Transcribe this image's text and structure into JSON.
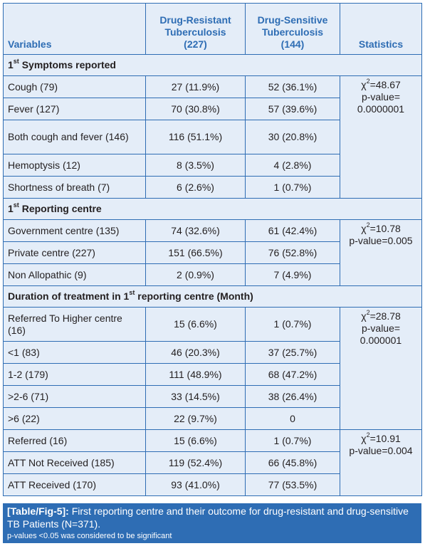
{
  "table": {
    "headers": {
      "variables": "Variables",
      "drug_resistant": [
        "Drug-Resistant",
        "Tuberculosis",
        "(227)"
      ],
      "drug_sensitive": [
        "Drug-Sensitive",
        "Tuberculosis",
        "(144)"
      ],
      "statistics": "Statistics"
    },
    "sections": [
      {
        "title_prefix": "1",
        "title_sup": "st",
        "title_rest": " Symptoms reported",
        "rows": [
          {
            "variable": "Cough (79)",
            "dr": "27 (11.9%)",
            "ds": "52 (36.1%)"
          },
          {
            "variable": "Fever (127)",
            "dr": "70 (30.8%)",
            "ds": "57 (39.6%)"
          },
          {
            "variable": "Both cough and fever (146)",
            "dr": "116 (51.1%)",
            "ds": "30 (20.8%)"
          },
          {
            "variable": "Hemoptysis (12)",
            "dr": "8 (3.5%)",
            "ds": "4 (2.8%)"
          },
          {
            "variable": "Shortness of breath (7)",
            "dr": "6 (2.6%)",
            "ds": "1 (0.7%)"
          }
        ],
        "stat": {
          "chi_prefix": "χ",
          "chi_sup": "2",
          "chi_value": "=48.67",
          "lines": [
            "p-value=",
            "0.0000001"
          ]
        }
      },
      {
        "title_prefix": "1",
        "title_sup": "st",
        "title_rest": " Reporting centre",
        "rows": [
          {
            "variable": "Government centre (135)",
            "dr": "74 (32.6%)",
            "ds": "61 (42.4%)"
          },
          {
            "variable": "Private centre (227)",
            "dr": "151 (66.5%)",
            "ds": "76 (52.8%)"
          },
          {
            "variable": "Non Allopathic (9)",
            "dr": "2 (0.9%)",
            "ds": "7 (4.9%)"
          }
        ],
        "stat": {
          "chi_prefix": "χ",
          "chi_sup": "2",
          "chi_value": "=10.78",
          "lines": [
            "p-value=0.005"
          ]
        }
      },
      {
        "title_prefix": "Duration of treatment in 1",
        "title_sup": "st",
        "title_rest": " reporting centre (Month)",
        "rows": [
          {
            "variable": "Referred To Higher centre (16)",
            "dr": "15 (6.6%)",
            "ds": "1 (0.7%)"
          },
          {
            "variable": "<1 (83)",
            "dr": "46 (20.3%)",
            "ds": "37 (25.7%)"
          },
          {
            "variable": "1-2 (179)",
            "dr": "111 (48.9%)",
            "ds": "68 (47.2%)"
          },
          {
            "variable": ">2-6 (71)",
            "dr": "33 (14.5%)",
            "ds": "38 (26.4%)"
          },
          {
            "variable": ">6 (22)",
            "dr": "22 (9.7%)",
            "ds": "0"
          }
        ],
        "stat": {
          "chi_prefix": "χ",
          "chi_sup": "2",
          "chi_value": "=28.78",
          "lines": [
            "p-value=",
            "0.000001"
          ]
        }
      },
      {
        "rows": [
          {
            "variable": "Referred (16)",
            "dr": "15 (6.6%)",
            "ds": "1 (0.7%)"
          },
          {
            "variable": "ATT Not Received (185)",
            "dr": "119 (52.4%)",
            "ds": "66 (45.8%)"
          },
          {
            "variable": "ATT Received (170)",
            "dr": "93 (41.0%)",
            "ds": "77 (53.5%)"
          }
        ],
        "stat": {
          "chi_prefix": "χ",
          "chi_sup": "2",
          "chi_value": "=10.91",
          "lines": [
            "p-value=0.004"
          ]
        }
      }
    ]
  },
  "caption": {
    "label": "[Table/Fig-5]:",
    "text": " First reporting centre and their outcome for drug-resistant and drug-sensitive TB Patients (N=371).",
    "note": "p-values <0.05 was considered to be significant"
  }
}
